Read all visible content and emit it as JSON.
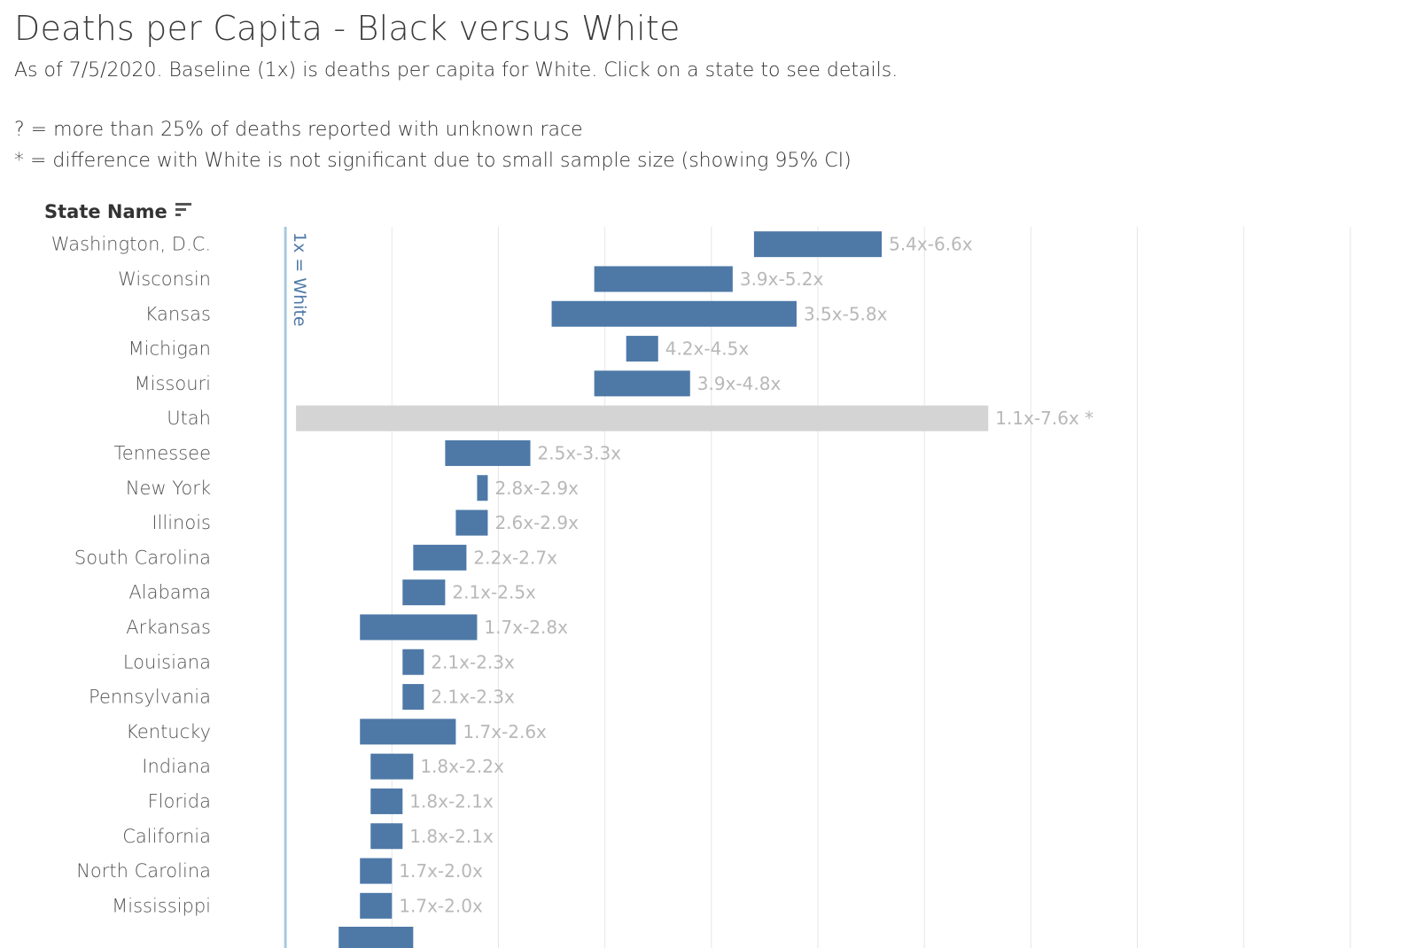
{
  "title": "Deaths per Capita - Black versus White",
  "subtitle": "As of 7/5/2020.  Baseline (1x) is deaths per capita for White. Click on a state to see details.",
  "notes": {
    "unknown_race": "? = more than 25% of deaths reported with unknown race",
    "not_significant": "* = difference with White is not significant due to small sample size (showing 95% CI)"
  },
  "column_header": "State Name",
  "icons": {
    "sort": "sort-descending-icon"
  },
  "colors": {
    "bar": "#4e79a7",
    "bar_insignificant": "#d4d4d4",
    "reference_line": "#a7c9e0",
    "label": "#b8b8b8",
    "gridline": "#e6e6e6"
  },
  "chart_data": {
    "type": "bar",
    "orientation": "horizontal",
    "reference_line": {
      "value": 1,
      "label": "1x = White"
    },
    "xlim": [
      0.4,
      11.6
    ],
    "grid": true,
    "states": [
      {
        "name": "Washington, D.C.",
        "low": 5.4,
        "high": 6.6,
        "label": "5.4x-6.6x",
        "significant": true
      },
      {
        "name": "Wisconsin",
        "low": 3.9,
        "high": 5.2,
        "label": "3.9x-5.2x",
        "significant": true
      },
      {
        "name": "Kansas",
        "low": 3.5,
        "high": 5.8,
        "label": "3.5x-5.8x",
        "significant": true
      },
      {
        "name": "Michigan",
        "low": 4.2,
        "high": 4.5,
        "label": "4.2x-4.5x",
        "significant": true
      },
      {
        "name": "Missouri",
        "low": 3.9,
        "high": 4.8,
        "label": "3.9x-4.8x",
        "significant": true
      },
      {
        "name": "Utah",
        "low": 1.1,
        "high": 7.6,
        "label": "1.1x-7.6x *",
        "significant": false
      },
      {
        "name": "Tennessee",
        "low": 2.5,
        "high": 3.3,
        "label": "2.5x-3.3x",
        "significant": true
      },
      {
        "name": "New York",
        "low": 2.8,
        "high": 2.9,
        "label": "2.8x-2.9x",
        "significant": true
      },
      {
        "name": "Illinois",
        "low": 2.6,
        "high": 2.9,
        "label": "2.6x-2.9x",
        "significant": true
      },
      {
        "name": "South Carolina",
        "low": 2.2,
        "high": 2.7,
        "label": "2.2x-2.7x",
        "significant": true
      },
      {
        "name": "Alabama",
        "low": 2.1,
        "high": 2.5,
        "label": "2.1x-2.5x",
        "significant": true
      },
      {
        "name": "Arkansas",
        "low": 1.7,
        "high": 2.8,
        "label": "1.7x-2.8x",
        "significant": true
      },
      {
        "name": "Louisiana",
        "low": 2.1,
        "high": 2.3,
        "label": "2.1x-2.3x",
        "significant": true
      },
      {
        "name": "Pennsylvania",
        "low": 2.1,
        "high": 2.3,
        "label": "2.1x-2.3x",
        "significant": true
      },
      {
        "name": "Kentucky",
        "low": 1.7,
        "high": 2.6,
        "label": "1.7x-2.6x",
        "significant": true
      },
      {
        "name": "Indiana",
        "low": 1.8,
        "high": 2.2,
        "label": "1.8x-2.2x",
        "significant": true
      },
      {
        "name": "Florida",
        "low": 1.8,
        "high": 2.1,
        "label": "1.8x-2.1x",
        "significant": true
      },
      {
        "name": "California",
        "low": 1.8,
        "high": 2.1,
        "label": "1.8x-2.1x",
        "significant": true
      },
      {
        "name": "North Carolina",
        "low": 1.7,
        "high": 2.0,
        "label": "1.7x-2.0x",
        "significant": true
      },
      {
        "name": "Mississippi",
        "low": 1.7,
        "high": 2.0,
        "label": "1.7x-2.0x",
        "significant": true
      }
    ]
  }
}
